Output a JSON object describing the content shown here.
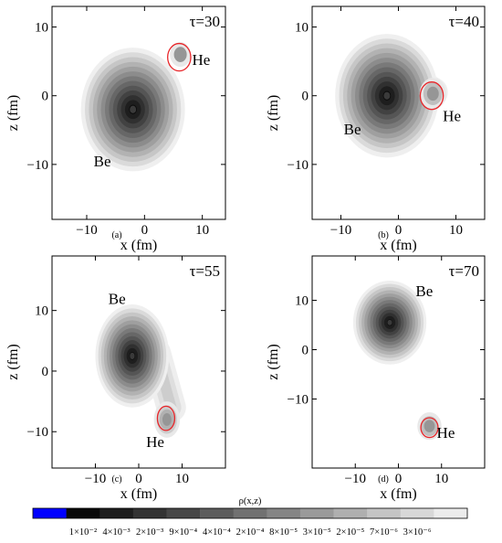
{
  "chart_data": [
    {
      "type": "contour",
      "caption": "(a)",
      "annotation": "τ=30",
      "xlabel": "x (fm)",
      "ylabel": "z (fm)",
      "xlim": [
        -16,
        14
      ],
      "ylim": [
        -18,
        13
      ],
      "xticks": [
        -10,
        0,
        10
      ],
      "yticks": [
        -10,
        0,
        10
      ],
      "xtick_labels": [
        "−10",
        "0",
        "10"
      ],
      "ytick_labels": [
        "−10",
        "0",
        "10"
      ],
      "labels": [
        {
          "text": "Be",
          "x": -7.3,
          "y": -9.5
        },
        {
          "text": "He",
          "x": 9.8,
          "y": 5.3
        }
      ],
      "he_circle": {
        "x": 6.0,
        "y": 5.6,
        "r": 2.0
      },
      "be_center": [
        -2.0,
        -2.0
      ],
      "be_radius": 9.0,
      "he_center": [
        6.2,
        6.0
      ],
      "he_radius": 1.8,
      "he_levels": 2,
      "tail": null
    },
    {
      "type": "contour",
      "caption": "(b)",
      "annotation": "τ=40",
      "xlabel": "x (fm)",
      "ylabel": "z (fm)",
      "xlim": [
        -15,
        15
      ],
      "ylim": [
        -18,
        13
      ],
      "xticks": [
        -10,
        0,
        10
      ],
      "yticks": [
        -10,
        0,
        10
      ],
      "xtick_labels": [
        "−10",
        "0",
        "10"
      ],
      "ytick_labels": [
        "−10",
        "0",
        "10"
      ],
      "labels": [
        {
          "text": "Be",
          "x": -8.0,
          "y": -4.8
        },
        {
          "text": "He",
          "x": 9.3,
          "y": -2.9
        }
      ],
      "he_circle": {
        "x": 5.8,
        "y": 0.0,
        "r": 2.0
      },
      "be_center": [
        -2.0,
        0.0
      ],
      "be_radius": 9.0,
      "he_center": [
        6.0,
        0.3
      ],
      "he_radius": 2.3,
      "he_levels": 3,
      "tail": {
        "x1": 1.0,
        "y1": 3.0,
        "x2": 6.0,
        "y2": 0.5,
        "w": 2.6
      }
    },
    {
      "type": "contour",
      "caption": "(c)",
      "annotation": "τ=55",
      "xlabel": "x (fm)",
      "ylabel": "z (fm)",
      "xlim": [
        -20,
        20
      ],
      "ylim": [
        -16,
        19
      ],
      "xticks": [
        -10,
        0,
        10
      ],
      "yticks": [
        -10,
        0,
        10
      ],
      "xtick_labels": [
        "−10",
        "0",
        "10"
      ],
      "ytick_labels": [
        "−10",
        "0",
        "10"
      ],
      "labels": [
        {
          "text": "Be",
          "x": -5.0,
          "y": 12.0
        },
        {
          "text": "He",
          "x": 3.8,
          "y": -11.6
        }
      ],
      "he_circle": {
        "x": 6.3,
        "y": -7.8,
        "r": 2.0
      },
      "be_center": [
        -1.5,
        2.5
      ],
      "be_radius": 8.5,
      "he_center": [
        6.5,
        -8.0
      ],
      "he_radius": 3.0,
      "he_levels": 4,
      "tail": {
        "x1": 4.0,
        "y1": 3.0,
        "x2": 7.5,
        "y2": -6.0,
        "w": 3.4
      }
    },
    {
      "type": "contour",
      "caption": "(d)",
      "annotation": "τ=70",
      "xlabel": "x (fm)",
      "ylabel": "z (fm)",
      "xlim": [
        -20,
        20
      ],
      "ylim": [
        -24,
        19
      ],
      "xticks": [
        -10,
        0,
        10
      ],
      "yticks": [
        -10,
        0,
        10
      ],
      "xtick_labels": [
        "−10",
        "0",
        "10"
      ],
      "ytick_labels": [
        "−10",
        "0",
        "10"
      ],
      "labels": [
        {
          "text": "Be",
          "x": 6.0,
          "y": 12.0
        },
        {
          "text": "He",
          "x": 11.0,
          "y": -16.8
        }
      ],
      "he_circle": {
        "x": 7.2,
        "y": -15.8,
        "r": 2.0
      },
      "be_center": [
        -2.0,
        5.5
      ],
      "be_radius": 8.5,
      "he_center": [
        7.2,
        -15.5
      ],
      "he_radius": 2.8,
      "he_levels": 3,
      "tail": null
    }
  ],
  "colorbar": {
    "title": "ρ(x,z)",
    "colors": [
      "#0000ff",
      "#0a0a0a",
      "#1e1e1e",
      "#333333",
      "#474747",
      "#5c5c5c",
      "#717171",
      "#858585",
      "#9a9a9a",
      "#afafaf",
      "#c4c4c4",
      "#d8d8d8",
      "#ececec"
    ],
    "tick_labels": [
      "1×10⁻²",
      "4×10⁻³",
      "2×10⁻³",
      "9×10⁻⁴",
      "4×10⁻⁴",
      "2×10⁻⁴",
      "8×10⁻⁵",
      "3×10⁻⁵",
      "2×10⁻⁵",
      "7×10⁻⁶",
      "3×10⁻⁶"
    ]
  },
  "colors": {
    "circle": "#e8262a",
    "lightest": "#efefef",
    "darkest": "#0a0a0a",
    "core": "#3a3a3a"
  }
}
